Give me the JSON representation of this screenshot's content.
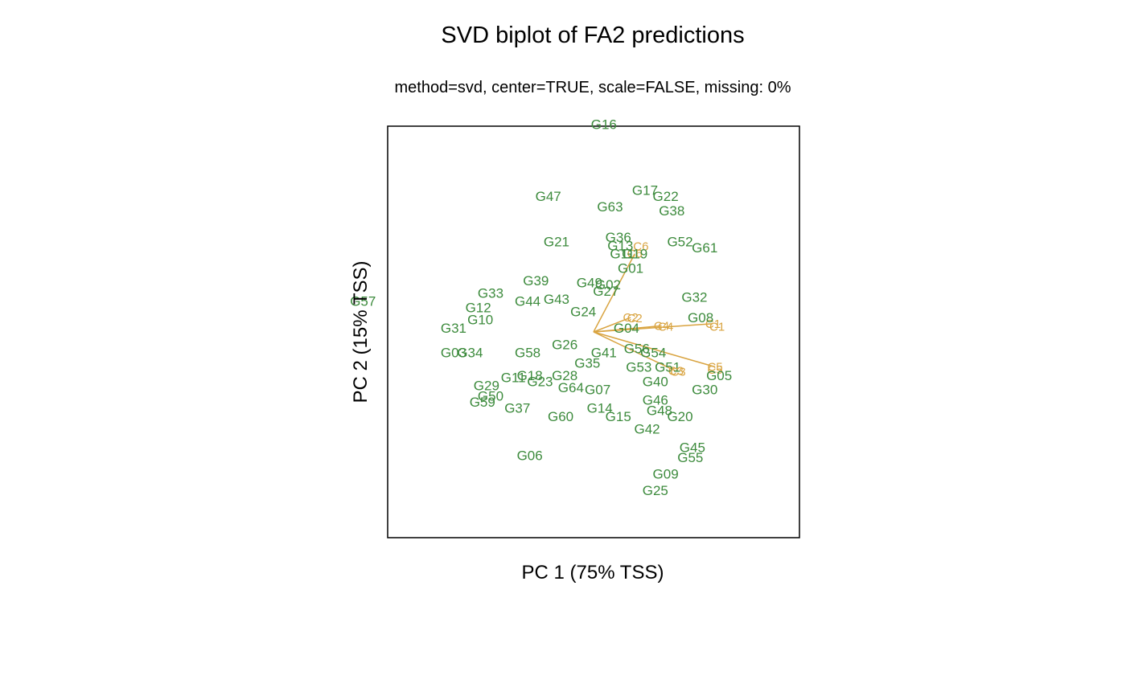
{
  "chart_data": {
    "type": "scatter",
    "title": "SVD biplot of FA2 predictions",
    "subtitle": "method=svd, center=TRUE, scale=FALSE, missing: 0%",
    "xlabel": "PC 1 (75% TSS)",
    "ylabel": "PC 2 (15% TSS)",
    "xlim": [
      -1.0,
      1.0
    ],
    "ylim": [
      -1.0,
      1.0
    ],
    "grid": false,
    "legend": "none",
    "genotype_color": "#3D8B3D",
    "environment_color": "#D9A441",
    "genotypes": [
      {
        "label": "G16",
        "x": 0.05,
        "y": 1.01
      },
      {
        "label": "G17",
        "x": 0.25,
        "y": 0.69
      },
      {
        "label": "G22",
        "x": 0.35,
        "y": 0.66
      },
      {
        "label": "G47",
        "x": -0.22,
        "y": 0.66
      },
      {
        "label": "G63",
        "x": 0.08,
        "y": 0.61
      },
      {
        "label": "G38",
        "x": 0.38,
        "y": 0.59
      },
      {
        "label": "G36",
        "x": 0.12,
        "y": 0.46
      },
      {
        "label": "G13",
        "x": 0.13,
        "y": 0.42
      },
      {
        "label": "C6",
        "x": 0.23,
        "y": 0.42
      },
      {
        "label": "G52",
        "x": 0.42,
        "y": 0.44
      },
      {
        "label": "G61",
        "x": 0.54,
        "y": 0.41
      },
      {
        "label": "G21",
        "x": -0.18,
        "y": 0.44
      },
      {
        "label": "G11",
        "x": 0.14,
        "y": 0.38
      },
      {
        "label": "G19",
        "x": 0.2,
        "y": 0.38
      },
      {
        "label": "G01",
        "x": 0.18,
        "y": 0.31
      },
      {
        "label": "G39",
        "x": -0.28,
        "y": 0.25
      },
      {
        "label": "G49",
        "x": -0.02,
        "y": 0.24
      },
      {
        "label": "G02",
        "x": 0.07,
        "y": 0.23
      },
      {
        "label": "G27",
        "x": 0.06,
        "y": 0.2
      },
      {
        "label": "G33",
        "x": -0.5,
        "y": 0.19
      },
      {
        "label": "G32",
        "x": 0.49,
        "y": 0.17
      },
      {
        "label": "G43",
        "x": -0.18,
        "y": 0.16
      },
      {
        "label": "G44",
        "x": -0.32,
        "y": 0.15
      },
      {
        "label": "G12",
        "x": -0.56,
        "y": 0.12
      },
      {
        "label": "G57",
        "x": -1.12,
        "y": 0.15
      },
      {
        "label": "G24",
        "x": -0.05,
        "y": 0.1
      },
      {
        "label": "G08",
        "x": 0.52,
        "y": 0.07
      },
      {
        "label": "G10",
        "x": -0.55,
        "y": 0.06
      },
      {
        "label": "C2",
        "x": 0.2,
        "y": 0.07
      },
      {
        "label": "C1",
        "x": 0.6,
        "y": 0.03
      },
      {
        "label": "C4",
        "x": 0.35,
        "y": 0.03
      },
      {
        "label": "G04",
        "x": 0.16,
        "y": 0.02
      },
      {
        "label": "G31",
        "x": -0.68,
        "y": 0.02
      },
      {
        "label": "G26",
        "x": -0.14,
        "y": -0.06
      },
      {
        "label": "G56",
        "x": 0.21,
        "y": -0.08
      },
      {
        "label": "G03",
        "x": -0.68,
        "y": -0.1
      },
      {
        "label": "G34",
        "x": -0.6,
        "y": -0.1
      },
      {
        "label": "G58",
        "x": -0.32,
        "y": -0.1
      },
      {
        "label": "G41",
        "x": 0.05,
        "y": -0.1
      },
      {
        "label": "G54",
        "x": 0.29,
        "y": -0.1
      },
      {
        "label": "G35",
        "x": -0.03,
        "y": -0.15
      },
      {
        "label": "G53",
        "x": 0.22,
        "y": -0.17
      },
      {
        "label": "G51",
        "x": 0.36,
        "y": -0.17
      },
      {
        "label": "C5",
        "x": 0.59,
        "y": -0.18
      },
      {
        "label": "C3",
        "x": 0.41,
        "y": -0.19
      },
      {
        "label": "G05",
        "x": 0.61,
        "y": -0.21
      },
      {
        "label": "G18",
        "x": -0.31,
        "y": -0.21
      },
      {
        "label": "G28",
        "x": -0.14,
        "y": -0.21
      },
      {
        "label": "G11",
        "x": -0.39,
        "y": -0.22
      },
      {
        "label": "G23",
        "x": -0.26,
        "y": -0.24
      },
      {
        "label": "G40",
        "x": 0.3,
        "y": -0.24
      },
      {
        "label": "G64",
        "x": -0.11,
        "y": -0.27
      },
      {
        "label": "G07",
        "x": 0.02,
        "y": -0.28
      },
      {
        "label": "G29",
        "x": -0.52,
        "y": -0.26
      },
      {
        "label": "G30",
        "x": 0.54,
        "y": -0.28
      },
      {
        "label": "G50",
        "x": -0.5,
        "y": -0.31
      },
      {
        "label": "G46",
        "x": 0.3,
        "y": -0.33
      },
      {
        "label": "G59",
        "x": -0.54,
        "y": -0.34
      },
      {
        "label": "G37",
        "x": -0.37,
        "y": -0.37
      },
      {
        "label": "G14",
        "x": 0.03,
        "y": -0.37
      },
      {
        "label": "G48",
        "x": 0.32,
        "y": -0.38
      },
      {
        "label": "G15",
        "x": 0.12,
        "y": -0.41
      },
      {
        "label": "G60",
        "x": -0.16,
        "y": -0.41
      },
      {
        "label": "G20",
        "x": 0.42,
        "y": -0.41
      },
      {
        "label": "G42",
        "x": 0.26,
        "y": -0.47
      },
      {
        "label": "G45",
        "x": 0.48,
        "y": -0.56
      },
      {
        "label": "G55",
        "x": 0.47,
        "y": -0.61
      },
      {
        "label": "G06",
        "x": -0.31,
        "y": -0.6
      },
      {
        "label": "G09",
        "x": 0.35,
        "y": -0.69
      },
      {
        "label": "G25",
        "x": 0.3,
        "y": -0.77
      }
    ],
    "environments": [
      {
        "label": "C6",
        "x": 0.2,
        "y": 0.38
      },
      {
        "label": "C2",
        "x": 0.18,
        "y": 0.07
      },
      {
        "label": "C4",
        "x": 0.33,
        "y": 0.03
      },
      {
        "label": "C1",
        "x": 0.58,
        "y": 0.04
      },
      {
        "label": "C5",
        "x": 0.59,
        "y": -0.17
      },
      {
        "label": "C3",
        "x": 0.4,
        "y": -0.19
      }
    ]
  }
}
